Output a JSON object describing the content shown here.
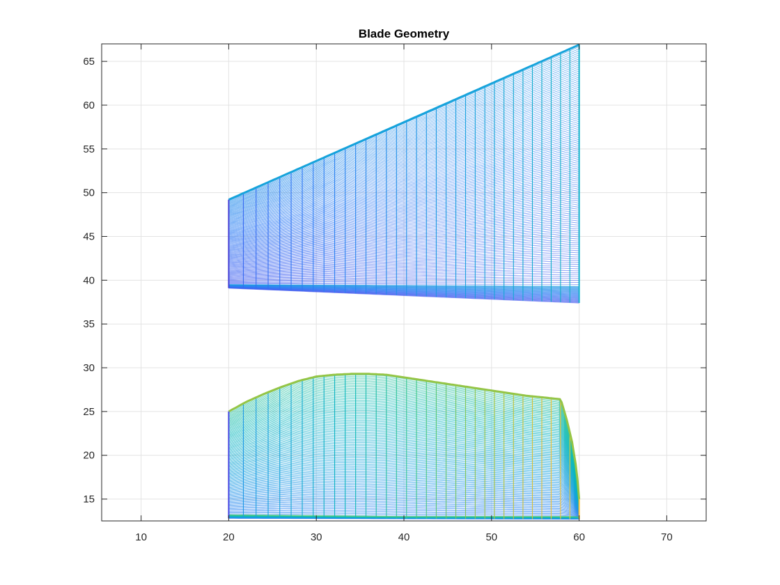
{
  "chart_data": {
    "type": "mesh",
    "title": "Blade Geometry",
    "xlabel": "",
    "ylabel": "",
    "xlim": [
      5.5,
      74.5
    ],
    "ylim": [
      12.5,
      67
    ],
    "xticks": [
      10,
      20,
      30,
      40,
      50,
      60,
      70
    ],
    "yticks": [
      15,
      20,
      25,
      30,
      35,
      40,
      45,
      50,
      55,
      60,
      65
    ],
    "grid": true,
    "colormap": "parula",
    "series": [
      {
        "x_range": [
          20,
          60
        ],
        "top": [
          [
            20,
            49.2
          ],
          [
            60,
            66.9
          ]
        ],
        "bottom_upper": [
          [
            20,
            39.5
          ],
          [
            60,
            39.3
          ]
        ],
        "bottom_lower": [
          [
            20,
            39.1
          ],
          [
            60,
            37.4
          ]
        ],
        "color_range": [
          0.08,
          0.52
        ]
      },
      {
        "x_range": [
          20,
          60
        ],
        "top": [
          [
            20,
            25.0
          ],
          [
            22,
            26.1
          ],
          [
            24,
            27.0
          ],
          [
            26,
            27.8
          ],
          [
            28,
            28.5
          ],
          [
            30,
            29.0
          ],
          [
            32,
            29.2
          ],
          [
            34,
            29.3
          ],
          [
            36,
            29.3
          ],
          [
            38,
            29.2
          ],
          [
            40,
            28.9
          ],
          [
            42,
            28.6
          ],
          [
            44,
            28.3
          ],
          [
            46,
            28.0
          ],
          [
            48,
            27.7
          ],
          [
            50,
            27.4
          ],
          [
            52,
            27.1
          ],
          [
            54,
            26.8
          ],
          [
            56,
            26.6
          ],
          [
            57.9,
            26.4
          ],
          [
            58.6,
            24.0
          ],
          [
            59.2,
            21.5
          ],
          [
            59.6,
            19.0
          ],
          [
            59.9,
            16.5
          ],
          [
            60,
            15.0
          ]
        ],
        "bottom_upper": [
          [
            20,
            13.2
          ],
          [
            40,
            13.0
          ],
          [
            60,
            13.0
          ]
        ],
        "bottom_lower": [
          [
            20,
            12.8
          ],
          [
            60,
            12.7
          ]
        ],
        "color_range": [
          0.1,
          1.0
        ]
      }
    ]
  }
}
